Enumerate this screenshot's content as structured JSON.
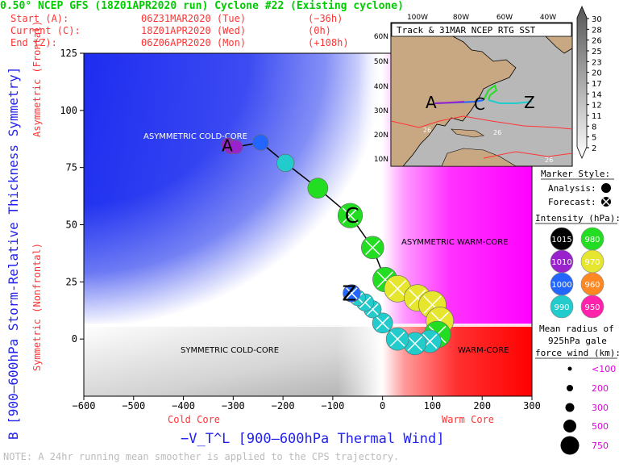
{
  "header": {
    "title": "0.50° NCEP GFS (18Z01APR2020 run) Cyclone #22 (Existing cyclone)",
    "start_label": "Start (A):",
    "start_value": "06Z31MAR2020 (Tue)",
    "start_offset": "(−36h)",
    "current_label": "Current (C):",
    "current_value": "18Z01APR2020 (Wed)",
    "current_offset": "(0h)",
    "end_label": "End (Z):",
    "end_value": "06Z06APR2020 (Mon)",
    "end_offset": "(+108h)"
  },
  "colors": {
    "cold_core_blue": "#1e2cf0",
    "warm_core_magenta": "#ff00ff",
    "warm_core_red": "#ff1010",
    "title_green": "#00cc00",
    "label_red": "#ff3333",
    "label_blue": "#2222ee"
  },
  "chart_data": {
    "type": "scatter",
    "xlabel": "−V_T^L [900–600hPa Thermal Wind]",
    "xlabel_left": "Cold Core",
    "xlabel_right": "Warm Core",
    "ylabel": "B [900–600hPa Storm-Relative Thickness Symmetry]",
    "ylabel_top": "Asymmetric (Frontal)",
    "ylabel_bottom": "Symmetric (Nonfrontal)",
    "xlim": [
      -600,
      300
    ],
    "ylim": [
      -25,
      125
    ],
    "xticks": [
      -600,
      -500,
      -400,
      -300,
      -200,
      -100,
      0,
      100,
      200,
      300
    ],
    "yticks": [
      0,
      25,
      50,
      75,
      100,
      125
    ],
    "quadrants": {
      "asym_cold": "ASYMMETRIC COLD-CORE",
      "asym_warm": "ASYMMETRIC WARM-CORE",
      "sym_cold": "SYMMETRIC COLD-CORE",
      "sym_warm": "WARM-CORE"
    },
    "letters": {
      "start": "A",
      "current": "C",
      "end": "Z"
    },
    "trajectory": [
      {
        "x": -310,
        "y": 85,
        "p": 1010,
        "r": 100,
        "f": false
      },
      {
        "x": -305,
        "y": 84,
        "p": 1010,
        "r": 100,
        "f": false
      },
      {
        "x": -295,
        "y": 84,
        "p": 1010,
        "r": 100,
        "f": false
      },
      {
        "x": -245,
        "y": 86,
        "p": 1000,
        "r": 150,
        "f": false
      },
      {
        "x": -195,
        "y": 77,
        "p": 990,
        "r": 200,
        "f": false
      },
      {
        "x": -130,
        "y": 66,
        "p": 980,
        "r": 300,
        "f": false
      },
      {
        "x": -65,
        "y": 54,
        "p": 980,
        "r": 500,
        "f": true
      },
      {
        "x": -20,
        "y": 40,
        "p": 980,
        "r": 400,
        "f": true
      },
      {
        "x": 5,
        "y": 26,
        "p": 980,
        "r": 500,
        "f": true
      },
      {
        "x": 30,
        "y": 22,
        "p": 970,
        "r": 600,
        "f": true
      },
      {
        "x": 70,
        "y": 18,
        "p": 970,
        "r": 600,
        "f": true
      },
      {
        "x": 100,
        "y": 15,
        "p": 970,
        "r": 650,
        "f": true
      },
      {
        "x": 115,
        "y": 8,
        "p": 970,
        "r": 650,
        "f": true
      },
      {
        "x": 110,
        "y": 2,
        "p": 980,
        "r": 600,
        "f": true
      },
      {
        "x": 95,
        "y": -1,
        "p": 990,
        "r": 400,
        "f": true
      },
      {
        "x": 65,
        "y": -2,
        "p": 990,
        "r": 400,
        "f": true
      },
      {
        "x": 30,
        "y": 0,
        "p": 990,
        "r": 400,
        "f": true
      },
      {
        "x": 0,
        "y": 7,
        "p": 990,
        "r": 300,
        "f": true
      },
      {
        "x": -20,
        "y": 13,
        "p": 990,
        "r": 200,
        "f": true
      },
      {
        "x": -35,
        "y": 16,
        "p": 990,
        "r": 200,
        "f": true
      },
      {
        "x": -50,
        "y": 18,
        "p": 990,
        "r": 150,
        "f": true
      },
      {
        "x": -62,
        "y": 20,
        "p": 1000,
        "r": 200,
        "f": true
      }
    ]
  },
  "map": {
    "title": "Track & 31MAR NCEP RTG SST",
    "lon_labels": [
      "100W",
      "80W",
      "60W",
      "40W"
    ],
    "lat_labels": [
      "60N",
      "50N",
      "40N",
      "30N",
      "20N",
      "10N"
    ],
    "sst_labels": [
      "26",
      "26",
      "26"
    ],
    "letters": [
      "A",
      "C",
      "Z"
    ]
  },
  "colorbar": {
    "values": [
      "30",
      "28",
      "26",
      "25",
      "23",
      "20",
      "17",
      "14",
      "12",
      "11",
      "8",
      "5",
      "2"
    ]
  },
  "legend": {
    "marker_title": "Marker Style:",
    "analysis_label": "Analysis:",
    "forecast_label": "Forecast:",
    "intensity_title": "Intensity (hPa):",
    "intensity": [
      {
        "label": "1015",
        "color": "#000000",
        "text": "#ffffff"
      },
      {
        "label": "980",
        "color": "#22dd22",
        "text": "#ffffff"
      },
      {
        "label": "1010",
        "color": "#9922cc",
        "text": "#ffffff"
      },
      {
        "label": "970",
        "color": "#e6e62e",
        "text": "#ffffff"
      },
      {
        "label": "1000",
        "color": "#2266ff",
        "text": "#ffffff"
      },
      {
        "label": "960",
        "color": "#ff8822",
        "text": "#ffffff"
      },
      {
        "label": "990",
        "color": "#22cccc",
        "text": "#ffffff"
      },
      {
        "label": "950",
        "color": "#ff22aa",
        "text": "#ffffff"
      }
    ],
    "radius_title": "Mean radius of 925hPa gale force wind (km):",
    "radius_title_lines": [
      "Mean radius of",
      "925hPa gale",
      "force wind (km):"
    ],
    "radius_items": [
      "<100",
      "200",
      "300",
      "500",
      "750"
    ]
  },
  "note": "NOTE: A 24hr running mean smoother is applied to the CPS trajectory."
}
